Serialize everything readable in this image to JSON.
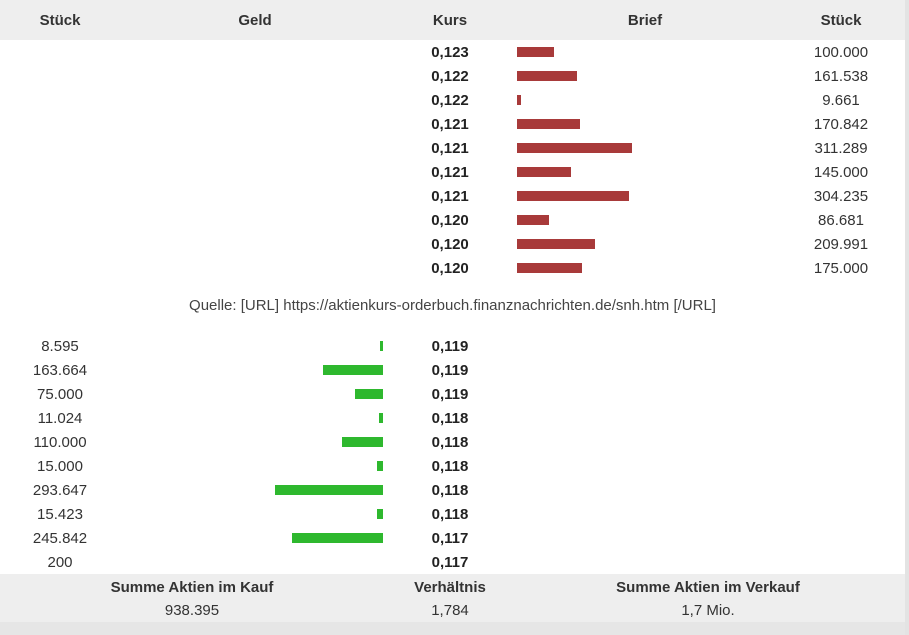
{
  "header": {
    "stueck_left": "Stück",
    "geld": "Geld",
    "kurs": "Kurs",
    "brief": "Brief",
    "stueck_right": "Stück"
  },
  "chart_data": {
    "type": "bar",
    "asks": [
      {
        "price": "0,123",
        "qty": "100.000",
        "volume": 100000
      },
      {
        "price": "0,122",
        "qty": "161.538",
        "volume": 161538
      },
      {
        "price": "0,122",
        "qty": "9.661",
        "volume": 9661
      },
      {
        "price": "0,121",
        "qty": "170.842",
        "volume": 170842
      },
      {
        "price": "0,121",
        "qty": "311.289",
        "volume": 311289
      },
      {
        "price": "0,121",
        "qty": "145.000",
        "volume": 145000
      },
      {
        "price": "0,121",
        "qty": "304.235",
        "volume": 304235
      },
      {
        "price": "0,120",
        "qty": "86.681",
        "volume": 86681
      },
      {
        "price": "0,120",
        "qty": "209.991",
        "volume": 209991
      },
      {
        "price": "0,120",
        "qty": "175.000",
        "volume": 175000
      }
    ],
    "bids": [
      {
        "price": "0,119",
        "qty": "8.595",
        "volume": 8595
      },
      {
        "price": "0,119",
        "qty": "163.664",
        "volume": 163664
      },
      {
        "price": "0,119",
        "qty": "75.000",
        "volume": 75000
      },
      {
        "price": "0,118",
        "qty": "11.024",
        "volume": 11024
      },
      {
        "price": "0,118",
        "qty": "110.000",
        "volume": 110000
      },
      {
        "price": "0,118",
        "qty": "15.000",
        "volume": 15000
      },
      {
        "price": "0,118",
        "qty": "293.647",
        "volume": 293647
      },
      {
        "price": "0,118",
        "qty": "15.423",
        "volume": 15423
      },
      {
        "price": "0,117",
        "qty": "245.842",
        "volume": 245842
      },
      {
        "price": "0,117",
        "qty": "200",
        "volume": 200
      }
    ],
    "ask_color": "#a83a3a",
    "bid_color": "#2eb82e"
  },
  "source": "Quelle: [URL] https://aktienkurs-orderbuch.finanznachrichten.de/snh.htm [/URL]",
  "footer": {
    "buy_title": "Summe Aktien im Kauf",
    "buy_value": "938.395",
    "ratio_title": "Verhältnis",
    "ratio_value": "1,784",
    "sell_title": "Summe Aktien im Verkauf",
    "sell_value": "1,7 Mio."
  }
}
